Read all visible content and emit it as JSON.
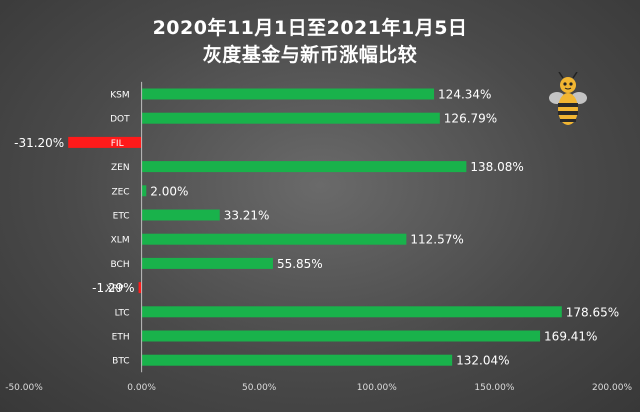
{
  "chart_data": {
    "type": "bar",
    "orientation": "horizontal",
    "title": "2020年11月1日至2021年1月5日",
    "subtitle": "灰度基金与新币涨幅比较",
    "categories": [
      "KSM",
      "DOT",
      "FIL",
      "ZEN",
      "ZEC",
      "ETC",
      "XLM",
      "BCH",
      "XRP",
      "LTC",
      "ETH",
      "BTC"
    ],
    "values": [
      124.34,
      126.79,
      -31.2,
      138.08,
      2.0,
      33.21,
      112.57,
      55.85,
      -1.29,
      178.65,
      169.41,
      132.04
    ],
    "data_labels": [
      "124.34%",
      "126.79%",
      "-31.20%",
      "138.08%",
      "2.00%",
      "33.21%",
      "112.57%",
      "55.85%",
      "-1.29%",
      "178.65%",
      "169.41%",
      "132.04%"
    ],
    "xlim": [
      -50,
      200
    ],
    "xticks": [
      -50,
      0,
      50,
      100,
      150,
      200
    ],
    "xtick_labels": [
      "-50.00%",
      "0.00%",
      "50.00%",
      "100.00%",
      "150.00%",
      "200.00%"
    ],
    "xlabel": "",
    "ylabel": "",
    "grid": false,
    "legend": "none",
    "colors": {
      "positive": "#19b24b",
      "negative": "#ff1a1a",
      "text": "#ffffff",
      "tick_text": "#dcdcdc"
    }
  }
}
